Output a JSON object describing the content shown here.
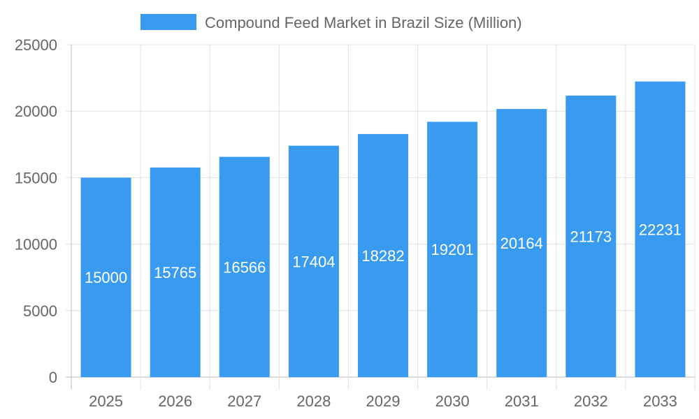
{
  "chart_data": {
    "type": "bar",
    "categories": [
      "2025",
      "2026",
      "2027",
      "2028",
      "2029",
      "2030",
      "2031",
      "2032",
      "2033"
    ],
    "series": [
      {
        "name": "Compound Feed Market in Brazil Size (Million)",
        "values": [
          15000,
          15765,
          16566,
          17404,
          18282,
          19201,
          20164,
          21173,
          22231
        ],
        "color": "#389bf0"
      }
    ],
    "ylim": [
      0,
      25000
    ],
    "yticks": [
      "0",
      "5000",
      "10000",
      "15000",
      "20000",
      "25000"
    ],
    "grid": true,
    "legend": "top-center",
    "data_labels": true
  }
}
